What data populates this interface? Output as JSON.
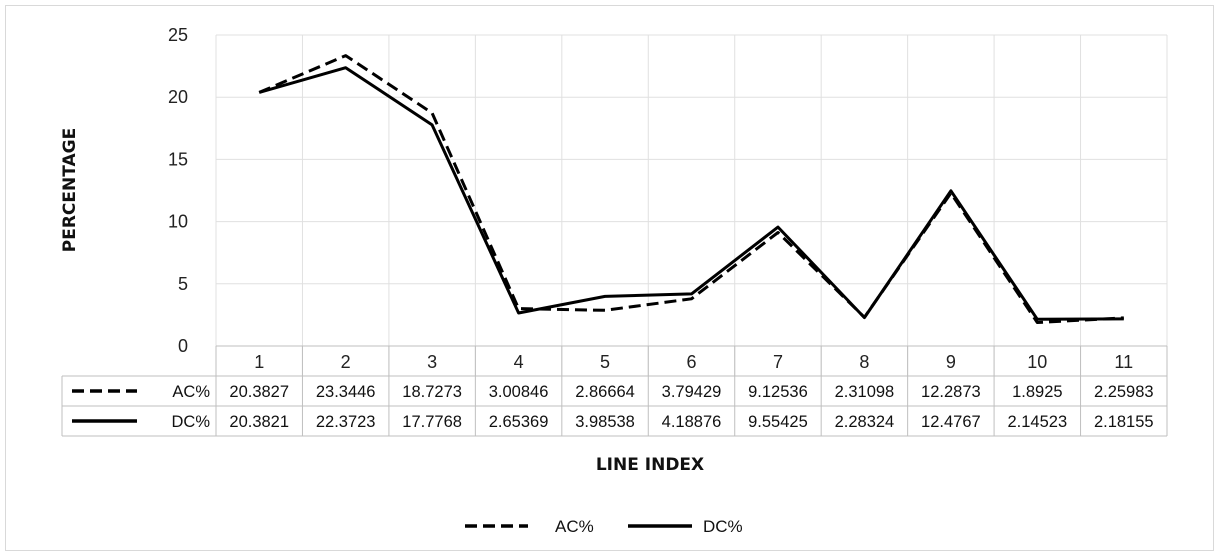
{
  "chart_data": {
    "type": "line",
    "categories": [
      "1",
      "2",
      "3",
      "4",
      "5",
      "6",
      "7",
      "8",
      "9",
      "10",
      "11"
    ],
    "series": [
      {
        "name": "AC%",
        "style": "dashed",
        "color": "#000000",
        "values": [
          20.3827,
          23.3446,
          18.7273,
          3.00846,
          2.86664,
          3.79429,
          9.12536,
          2.31098,
          12.2873,
          1.8925,
          2.25983
        ],
        "labels": [
          "20.3827",
          "23.3446",
          "18.7273",
          "3.00846",
          "2.86664",
          "3.79429",
          "9.12536",
          "2.31098",
          "12.2873",
          "1.8925",
          "2.25983"
        ]
      },
      {
        "name": "DC%",
        "style": "solid",
        "color": "#000000",
        "values": [
          20.3821,
          22.3723,
          17.7768,
          2.65369,
          3.98538,
          4.18876,
          9.55425,
          2.28324,
          12.4767,
          2.14523,
          2.18155
        ],
        "labels": [
          "20.3821",
          "22.3723",
          "17.7768",
          "2.65369",
          "3.98538",
          "4.18876",
          "9.55425",
          "2.28324",
          "12.4767",
          "2.14523",
          "2.18155"
        ]
      }
    ],
    "xlabel": "LINE INDEX",
    "ylabel": "PERCENTAGE",
    "ylim": [
      0,
      25
    ],
    "yticks": [
      "0",
      "5",
      "10",
      "15",
      "20",
      "25"
    ],
    "grid": true,
    "data_table": true,
    "legend": "bottom"
  }
}
